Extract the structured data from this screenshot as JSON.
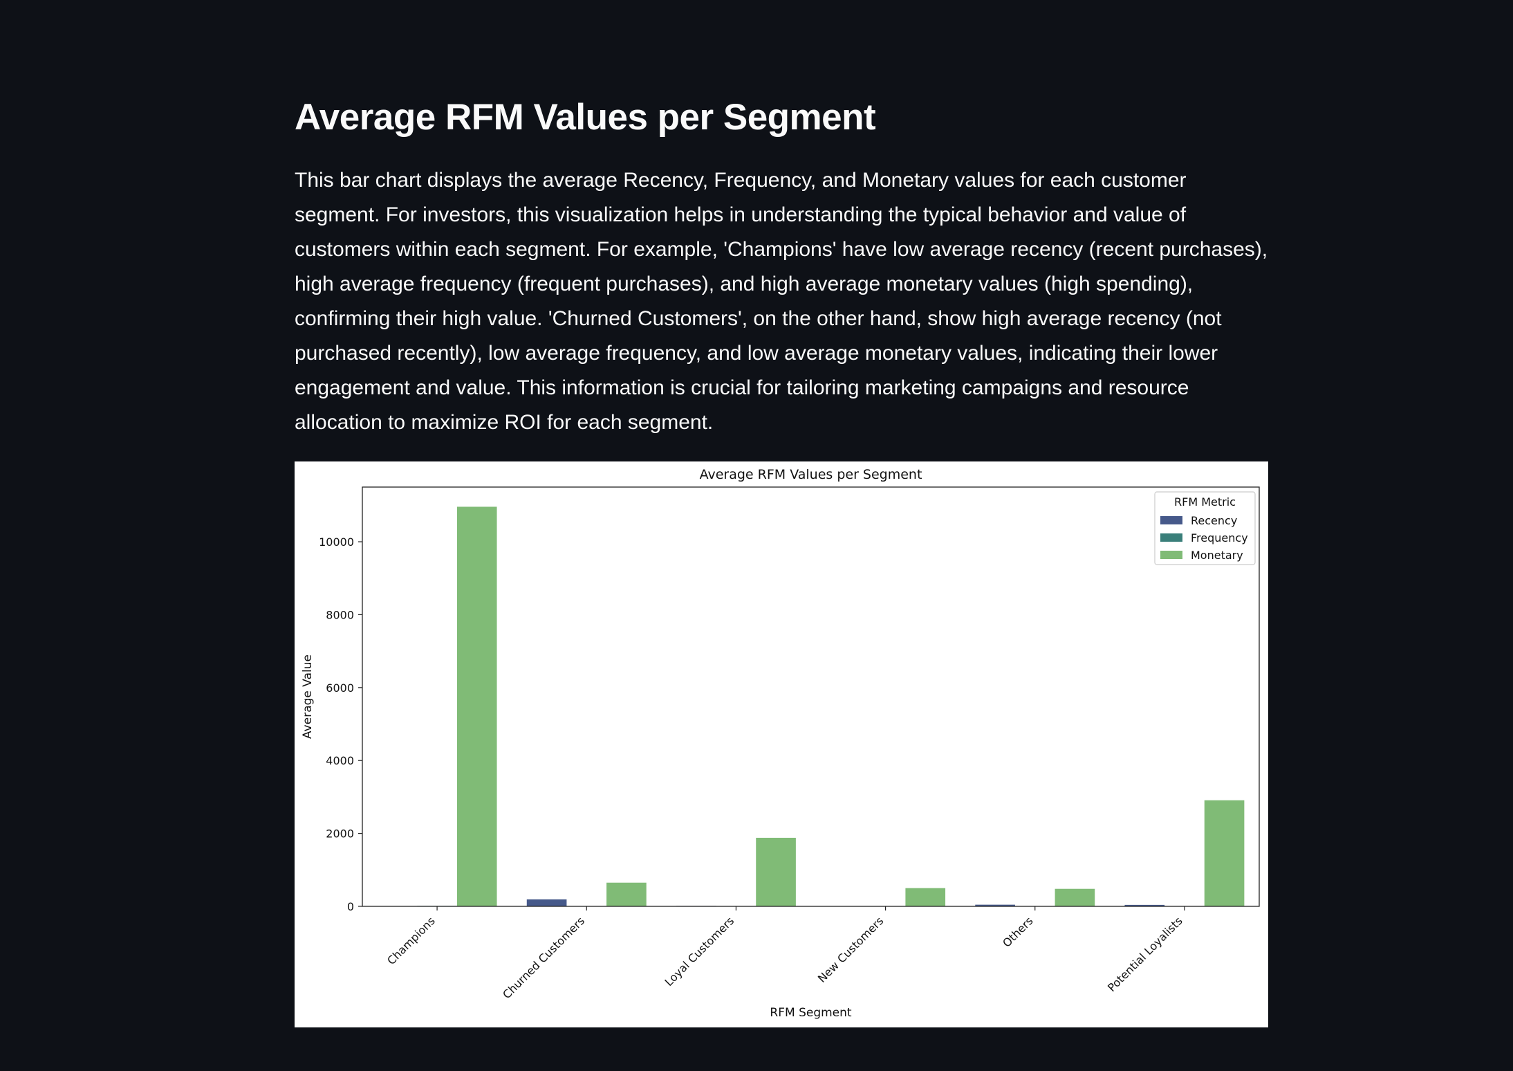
{
  "page": {
    "heading": "Average RFM Values per Segment",
    "description": "This bar chart displays the average Recency, Frequency, and Monetary values for each customer segment. For investors, this visualization helps in understanding the typical behavior and value of customers within each segment. For example, 'Champions' have low average recency (recent purchases), high average frequency (frequent purchases), and high average monetary values (high spending), confirming their high value. 'Churned Customers', on the other hand, show high average recency (not purchased recently), low average frequency, and low average monetary values, indicating their lower engagement and value. This information is crucial for tailoring marketing campaigns and resource allocation to maximize ROI for each segment."
  },
  "colors": {
    "background": "#0e1117",
    "recency": "#46598a",
    "frequency": "#3a7f7a",
    "monetary": "#80bb76"
  },
  "chart_data": {
    "type": "bar",
    "title": "Average RFM Values per Segment",
    "xlabel": "RFM Segment",
    "ylabel": "Average Value",
    "ylim": [
      0,
      11500
    ],
    "yticks": [
      0,
      2000,
      4000,
      6000,
      8000,
      10000
    ],
    "categories": [
      "Champions",
      "Churned Customers",
      "Loyal Customers",
      "New Customers",
      "Others",
      "Potential Loyalists"
    ],
    "legend_title": "RFM Metric",
    "legend_position": "top-right",
    "grid": false,
    "series": [
      {
        "name": "Recency",
        "values": [
          6,
          190,
          12,
          8,
          45,
          40
        ]
      },
      {
        "name": "Frequency",
        "values": [
          12,
          2,
          6,
          1,
          2,
          3
        ]
      },
      {
        "name": "Monetary",
        "values": [
          10960,
          650,
          1880,
          500,
          480,
          2910
        ]
      }
    ]
  }
}
